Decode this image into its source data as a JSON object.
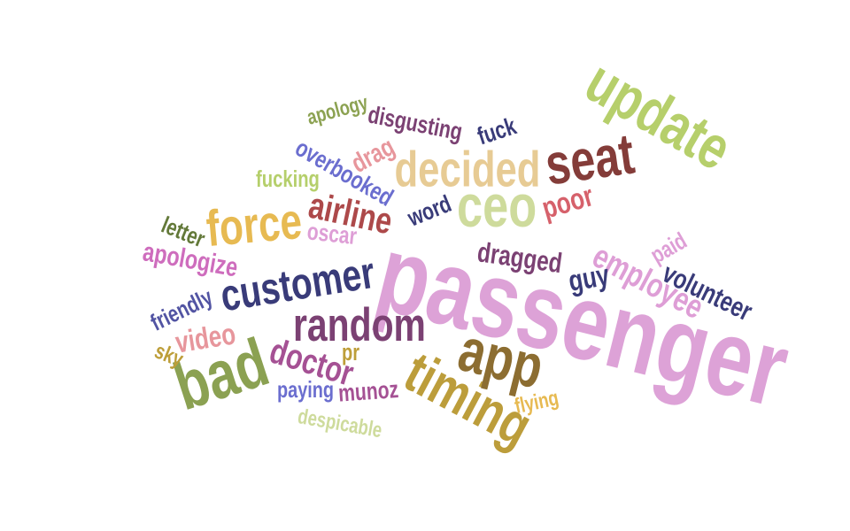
{
  "words": [
    {
      "text": "passenger",
      "color": "#dda2d7"
    },
    {
      "text": "update",
      "color": "#b6cf6b"
    },
    {
      "text": "timing",
      "color": "#bc9d3b"
    },
    {
      "text": "app",
      "color": "#8c6d31"
    },
    {
      "text": "bad",
      "color": "#8ba152"
    },
    {
      "text": "seat",
      "color": "#843c39"
    },
    {
      "text": "decided",
      "color": "#e7cb94"
    },
    {
      "text": "ceo",
      "color": "#cedb9c"
    },
    {
      "text": "random",
      "color": "#7b4173"
    },
    {
      "text": "customer",
      "color": "#393b79"
    },
    {
      "text": "force",
      "color": "#e7ba52"
    },
    {
      "text": "employee",
      "color": "#de9ed6"
    },
    {
      "text": "airline",
      "color": "#ad494a"
    },
    {
      "text": "doctor",
      "color": "#a55194"
    },
    {
      "text": "volunteer",
      "color": "#393b79"
    },
    {
      "text": "overbooked",
      "color": "#6b6ecf"
    },
    {
      "text": "dragged",
      "color": "#7b4173"
    },
    {
      "text": "disgusting",
      "color": "#7b4173"
    },
    {
      "text": "apologize",
      "color": "#ce6dbd"
    },
    {
      "text": "word",
      "color": "#393b79"
    },
    {
      "text": "poor",
      "color": "#d6616b"
    },
    {
      "text": "guy",
      "color": "#393b79"
    },
    {
      "text": "video",
      "color": "#e7969c"
    },
    {
      "text": "friendly",
      "color": "#5254a3"
    },
    {
      "text": "apology",
      "color": "#8ca252"
    },
    {
      "text": "fuck",
      "color": "#393b79"
    },
    {
      "text": "drag",
      "color": "#e7969c"
    },
    {
      "text": "fucking",
      "color": "#b5cf6b"
    },
    {
      "text": "letter",
      "color": "#637939"
    },
    {
      "text": "oscar",
      "color": "#de9ed6"
    },
    {
      "text": "paid",
      "color": "#de9ed6"
    },
    {
      "text": "munoz",
      "color": "#a55194"
    },
    {
      "text": "paying",
      "color": "#6b6ecf"
    },
    {
      "text": "pr",
      "color": "#bd9e39"
    },
    {
      "text": "sky",
      "color": "#bd9e39"
    },
    {
      "text": "flying",
      "color": "#e7ba52"
    },
    {
      "text": "despicable",
      "color": "#cedb9c"
    }
  ]
}
